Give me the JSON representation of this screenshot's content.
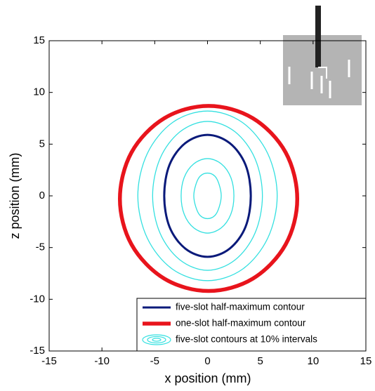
{
  "chart_data": {
    "type": "contour",
    "xlabel": "x position (mm)",
    "ylabel": "z position (mm)",
    "xlim": [
      -15,
      15
    ],
    "ylim": [
      -15,
      15
    ],
    "xticks": [
      -15,
      -10,
      -5,
      0,
      5,
      10,
      15
    ],
    "yticks": [
      -15,
      -10,
      -5,
      0,
      5,
      10,
      15
    ],
    "legend": "lower right",
    "series": [
      {
        "name": "five-slot half-maximum contour",
        "color": "#0a1a7a",
        "x": [
          4.1,
          3.6,
          2.1,
          0,
          -2.1,
          -3.6,
          -4.1,
          -3.6,
          -2.1,
          0,
          2.1,
          3.6,
          4.1
        ],
        "y": [
          0,
          3.0,
          5.1,
          5.9,
          5.1,
          3.0,
          0,
          -3.0,
          -5.1,
          -5.9,
          -5.1,
          -3.0,
          0
        ]
      },
      {
        "name": "one-slot half-maximum contour",
        "color": "#e8141c",
        "x": [
          8.5,
          7.4,
          4.3,
          0.1,
          -4.1,
          -7.2,
          -8.3,
          -7.2,
          -4.1,
          0.1,
          4.3,
          7.4,
          8.5
        ],
        "y": [
          -0.3,
          4.2,
          7.5,
          8.7,
          7.5,
          4.2,
          -0.3,
          -4.7,
          -8.0,
          -9.2,
          -8.0,
          -4.7,
          -0.3
        ]
      },
      {
        "name": "five-slot contours at 10% intervals",
        "color": "#33e0e0",
        "x": [
          1.3,
          1.1,
          0.7,
          0,
          -0.7,
          -1.1,
          -1.3,
          -1.1,
          -0.7,
          0,
          0.7,
          1.1,
          1.3,
          null,
          2.5,
          2.2,
          1.3,
          0,
          -1.3,
          -2.2,
          -2.5,
          -2.2,
          -1.3,
          0,
          1.3,
          2.2,
          2.5,
          null,
          5.2,
          4.5,
          2.6,
          0,
          -2.6,
          -4.5,
          -5.2,
          -4.5,
          -2.6,
          0,
          2.6,
          4.5,
          5.2,
          null,
          6.6,
          5.7,
          3.3,
          0,
          -3.3,
          -5.7,
          -6.6,
          -5.7,
          -3.3,
          0,
          3.3,
          5.7,
          6.6
        ],
        "y": [
          0,
          1.1,
          1.9,
          2.2,
          1.9,
          1.1,
          0,
          -1.1,
          -1.9,
          -2.2,
          -1.9,
          -1.1,
          0,
          null,
          0,
          1.8,
          3.1,
          3.6,
          3.1,
          1.8,
          0,
          -1.8,
          -3.1,
          -3.6,
          -3.1,
          -1.8,
          0,
          null,
          0,
          3.6,
          6.2,
          7.2,
          6.2,
          3.6,
          0,
          -3.6,
          -6.2,
          -7.2,
          -6.2,
          -3.6,
          0,
          null,
          0,
          4.1,
          7.1,
          8.2,
          7.1,
          4.1,
          0,
          -4.1,
          -7.1,
          -8.2,
          -7.1,
          -4.1,
          0
        ]
      }
    ]
  }
}
